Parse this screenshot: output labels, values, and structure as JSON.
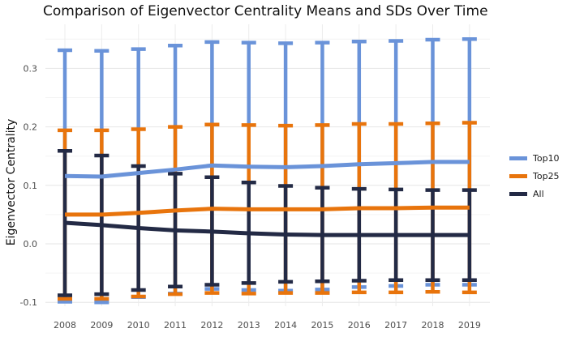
{
  "chart_data": {
    "type": "line",
    "title": "Comparison of Eigenvector Centrality Means and SDs Over Time",
    "xlabel": "",
    "ylabel": "Eigenvector Centrality",
    "x": [
      "2008",
      "2009",
      "2010",
      "2011",
      "2012",
      "2013",
      "2014",
      "2015",
      "2016",
      "2017",
      "2018",
      "2019"
    ],
    "ylim": [
      -0.105,
      0.37
    ],
    "yticks": [
      "0.3",
      "0.2",
      "0.1",
      "0.0",
      "-0.1"
    ],
    "grid": true,
    "legend_position": "right",
    "error_bars": "mean ± SD",
    "series": [
      {
        "name": "Top10",
        "color": "#6a93d9",
        "mean": [
          0.116,
          0.115,
          0.121,
          0.127,
          0.134,
          0.132,
          0.131,
          0.133,
          0.136,
          0.138,
          0.14,
          0.14
        ],
        "upper": [
          0.331,
          0.33,
          0.333,
          0.339,
          0.345,
          0.344,
          0.343,
          0.344,
          0.346,
          0.347,
          0.349,
          0.35
        ],
        "lower": [
          -0.099,
          -0.1,
          -0.091,
          -0.085,
          -0.077,
          -0.079,
          -0.08,
          -0.078,
          -0.074,
          -0.072,
          -0.07,
          -0.07
        ]
      },
      {
        "name": "Top25",
        "color": "#e8740c",
        "mean": [
          0.05,
          0.05,
          0.053,
          0.057,
          0.06,
          0.059,
          0.059,
          0.059,
          0.061,
          0.061,
          0.062,
          0.062
        ],
        "upper": [
          0.194,
          0.194,
          0.196,
          0.2,
          0.204,
          0.203,
          0.202,
          0.203,
          0.205,
          0.205,
          0.206,
          0.207
        ],
        "lower": [
          -0.094,
          -0.094,
          -0.09,
          -0.086,
          -0.084,
          -0.085,
          -0.084,
          -0.084,
          -0.083,
          -0.083,
          -0.082,
          -0.083
        ]
      },
      {
        "name": "All",
        "color": "#232a45",
        "mean": [
          0.036,
          0.032,
          0.027,
          0.023,
          0.021,
          0.018,
          0.016,
          0.015,
          0.015,
          0.015,
          0.015,
          0.015
        ],
        "upper": [
          0.159,
          0.151,
          0.133,
          0.12,
          0.114,
          0.105,
          0.099,
          0.096,
          0.094,
          0.093,
          0.092,
          0.092
        ],
        "lower": [
          -0.088,
          -0.086,
          -0.079,
          -0.073,
          -0.07,
          -0.067,
          -0.065,
          -0.064,
          -0.063,
          -0.062,
          -0.062,
          -0.062
        ]
      }
    ]
  }
}
